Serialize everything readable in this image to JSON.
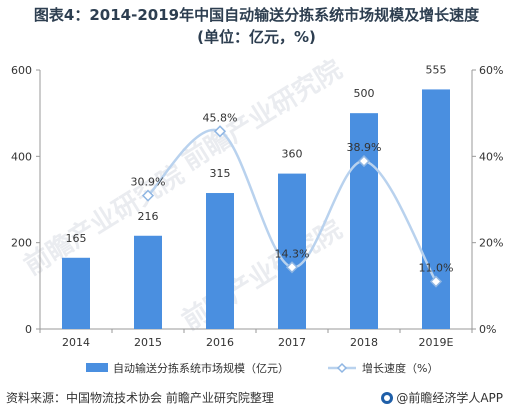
{
  "title_line1": "图表4：2014-2019年中国自动输送分拣系统市场规模及增长速度",
  "title_line2": "(单位：亿元，%)",
  "source": "资料来源：中国物流技术协会 前瞻产业研究院整理",
  "brand": "@前瞻经济学人APP",
  "watermark": "前瞻产业研究院",
  "colors": {
    "bar": "#4a8fe0",
    "line": "#b9d2ee",
    "marker": "#8fb6e3",
    "grid": "#e4e4e4",
    "axis": "#999999"
  },
  "chart_data": {
    "type": "bar",
    "categories": [
      "2014",
      "2015",
      "2016",
      "2017",
      "2018",
      "2019E"
    ],
    "series": [
      {
        "name": "自动输送分拣系统市场规模（亿元）",
        "type": "bar",
        "axis": "left",
        "values": [
          165,
          216,
          315,
          360,
          500,
          555
        ],
        "labels": [
          "165",
          "216",
          "315",
          "360",
          "500",
          "555"
        ]
      },
      {
        "name": "增长速度（%）",
        "type": "line",
        "axis": "right",
        "values": [
          null,
          30.9,
          45.8,
          14.3,
          38.9,
          11.0
        ],
        "labels": [
          "",
          "30.9%",
          "45.8%",
          "14.3%",
          "38.9%",
          "11.0%"
        ]
      }
    ],
    "y_left": {
      "lim": [
        0,
        600
      ],
      "ticks": [
        "0",
        "200",
        "400",
        "600"
      ]
    },
    "y_right": {
      "lim": [
        0,
        60
      ],
      "ticks": [
        "0%",
        "20%",
        "40%",
        "60%"
      ]
    },
    "legend_position": "bottom",
    "grid": false
  }
}
